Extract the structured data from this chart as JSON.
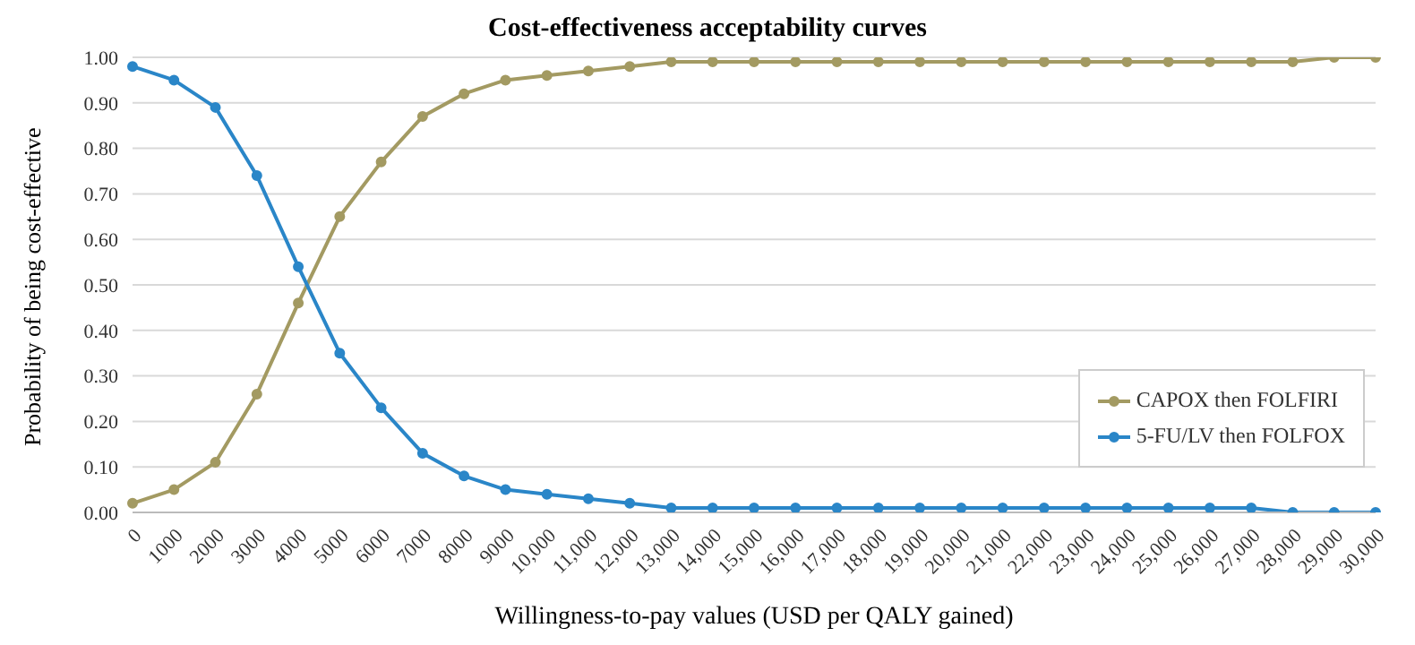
{
  "chart_data": {
    "type": "line",
    "title": "Cost-effectiveness acceptability curves",
    "xlabel": "Willingness-to-pay values (USD per QALY gained)",
    "ylabel": "Probability of being cost-effective",
    "categories": [
      "0",
      "1000",
      "2000",
      "3000",
      "4000",
      "5000",
      "6000",
      "7000",
      "8000",
      "9000",
      "10,000",
      "11,000",
      "12,000",
      "13,000",
      "14,000",
      "15,000",
      "16,000",
      "17,000",
      "18,000",
      "19,000",
      "20,000",
      "21,000",
      "22,000",
      "23,000",
      "24,000",
      "25,000",
      "26,000",
      "27,000",
      "28,000",
      "29,000",
      "30,000"
    ],
    "series": [
      {
        "name": "CAPOX then FOLFIRI",
        "color": "#a39a62",
        "values": [
          0.02,
          0.05,
          0.11,
          0.26,
          0.46,
          0.65,
          0.77,
          0.87,
          0.92,
          0.95,
          0.96,
          0.97,
          0.98,
          0.99,
          0.99,
          0.99,
          0.99,
          0.99,
          0.99,
          0.99,
          0.99,
          0.99,
          0.99,
          0.99,
          0.99,
          0.99,
          0.99,
          0.99,
          0.99,
          1.0,
          1.0
        ]
      },
      {
        "name": "5-FU/LV then FOLFOX",
        "color": "#2a86c8",
        "values": [
          0.98,
          0.95,
          0.89,
          0.74,
          0.54,
          0.35,
          0.23,
          0.13,
          0.08,
          0.05,
          0.04,
          0.03,
          0.02,
          0.01,
          0.01,
          0.01,
          0.01,
          0.01,
          0.01,
          0.01,
          0.01,
          0.01,
          0.01,
          0.01,
          0.01,
          0.01,
          0.01,
          0.01,
          0.0,
          0.0,
          0.0
        ]
      }
    ],
    "ylim": [
      0,
      1
    ],
    "yticks": [
      {
        "value": 0,
        "label": "0.00"
      },
      {
        "value": 0.1,
        "label": "0.10"
      },
      {
        "value": 0.2,
        "label": "0.20"
      },
      {
        "value": 0.3,
        "label": "0.30"
      },
      {
        "value": 0.4,
        "label": "0.40"
      },
      {
        "value": 0.5,
        "label": "0.50"
      },
      {
        "value": 0.6,
        "label": "0.60"
      },
      {
        "value": 0.7,
        "label": "0.70"
      },
      {
        "value": 0.8,
        "label": "0.80"
      },
      {
        "value": 0.9,
        "label": "0.90"
      },
      {
        "value": 1,
        "label": "1.00"
      }
    ],
    "grid": "y",
    "legend": "right",
    "marker": "circle",
    "line_style": "solid"
  }
}
